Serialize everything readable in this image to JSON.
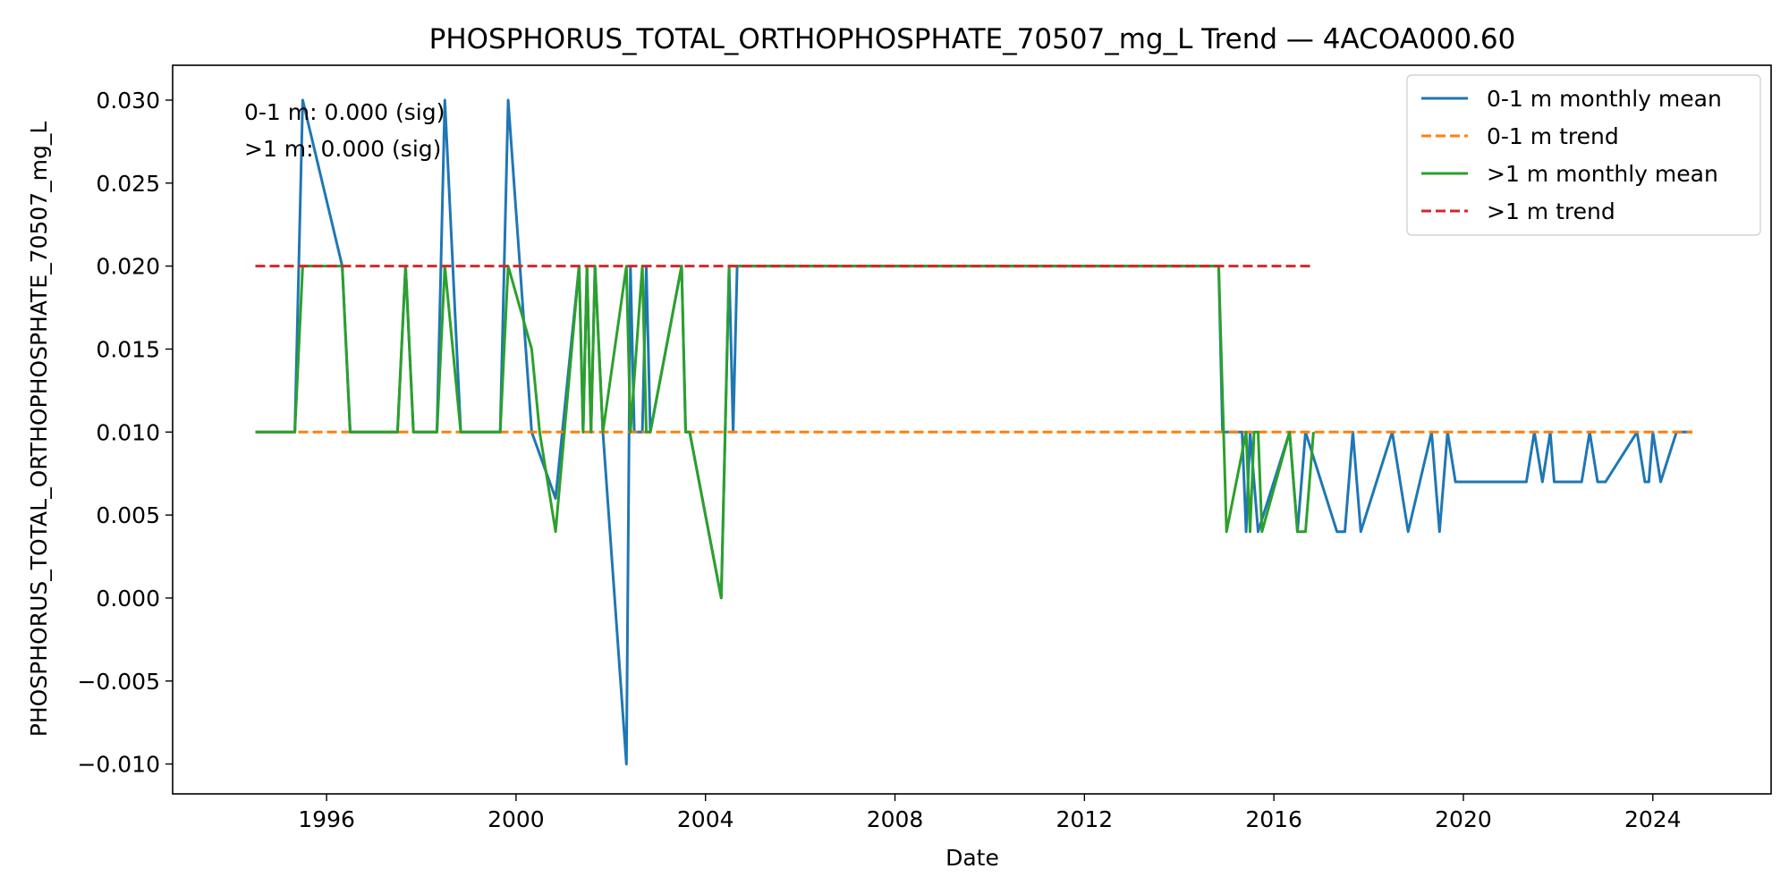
{
  "chart_data": {
    "type": "line",
    "title": "PHOSPHORUS_TOTAL_ORTHOPHOSPHATE_70507_mg_L Trend — 4ACOA000.60",
    "xlabel": "Date",
    "ylabel": "PHOSPHORUS_TOTAL_ORTHOPHOSPHATE_70507_mg_L",
    "x_type": "date",
    "xlim": [
      "1992-10-01",
      "2026-07-01"
    ],
    "ylim": [
      -0.0118,
      0.0321
    ],
    "x_ticks": [
      "1996",
      "2000",
      "2004",
      "2008",
      "2012",
      "2016",
      "2020",
      "2024"
    ],
    "y_ticks": [
      "−0.010",
      "−0.005",
      "0.000",
      "0.005",
      "0.010",
      "0.015",
      "0.020",
      "0.025",
      "0.030"
    ],
    "y_tick_values": [
      -0.01,
      -0.005,
      0.0,
      0.005,
      0.01,
      0.015,
      0.02,
      0.025,
      0.03
    ],
    "grid": false,
    "legend_position": "top-right",
    "annotations": [
      "0-1 m: 0.000 (sig)",
      ">1 m: 0.000 (sig)"
    ],
    "series": [
      {
        "name": "0-1 m monthly mean",
        "color": "#1f77b4",
        "style": "solid",
        "points": [
          [
            "1994-07-01",
            0.01
          ],
          [
            "1995-05-01",
            0.01
          ],
          [
            "1995-07-01",
            0.03
          ],
          [
            "1996-05-01",
            0.02
          ],
          [
            "1996-07-01",
            0.01
          ],
          [
            "1997-07-01",
            0.01
          ],
          [
            "1997-09-01",
            0.02
          ],
          [
            "1997-11-01",
            0.01
          ],
          [
            "1998-05-01",
            0.01
          ],
          [
            "1998-07-01",
            0.03
          ],
          [
            "1998-11-01",
            0.01
          ],
          [
            "1999-09-01",
            0.01
          ],
          [
            "1999-11-01",
            0.03
          ],
          [
            "2000-05-01",
            0.01
          ],
          [
            "2000-11-01",
            0.006
          ],
          [
            "2001-05-01",
            0.02
          ],
          [
            "2001-06-01",
            0.01
          ],
          [
            "2001-07-01",
            0.02
          ],
          [
            "2001-08-01",
            0.01
          ],
          [
            "2001-09-01",
            0.02
          ],
          [
            "2001-11-01",
            0.01
          ],
          [
            "2002-05-01",
            -0.01
          ],
          [
            "2002-06-01",
            0.02
          ],
          [
            "2002-07-01",
            0.01
          ],
          [
            "2002-09-01",
            0.01
          ],
          [
            "2002-10-01",
            0.02
          ],
          [
            "2002-11-01",
            0.01
          ],
          [
            "2003-07-01",
            0.02
          ],
          [
            "2003-08-01",
            0.01
          ],
          [
            "2003-09-01",
            0.01
          ],
          [
            "2004-05-01",
            0.0
          ],
          [
            "2004-07-01",
            0.02
          ],
          [
            "2004-08-01",
            0.01
          ],
          [
            "2004-09-01",
            0.02
          ],
          [
            "2014-11-01",
            0.02
          ],
          [
            "2014-12-01",
            0.01
          ],
          [
            "2015-05-01",
            0.01
          ],
          [
            "2015-06-01",
            0.004
          ],
          [
            "2015-07-01",
            0.01
          ],
          [
            "2015-09-01",
            0.004
          ],
          [
            "2016-05-01",
            0.01
          ],
          [
            "2016-07-01",
            0.004
          ],
          [
            "2016-09-01",
            0.01
          ],
          [
            "2017-05-01",
            0.004
          ],
          [
            "2017-07-01",
            0.004
          ],
          [
            "2017-09-01",
            0.01
          ],
          [
            "2017-11-01",
            0.004
          ],
          [
            "2018-07-01",
            0.01
          ],
          [
            "2018-11-01",
            0.004
          ],
          [
            "2019-05-01",
            0.01
          ],
          [
            "2019-07-01",
            0.004
          ],
          [
            "2019-09-01",
            0.01
          ],
          [
            "2019-11-01",
            0.007
          ],
          [
            "2020-07-01",
            0.007
          ],
          [
            "2021-05-01",
            0.007
          ],
          [
            "2021-07-01",
            0.01
          ],
          [
            "2021-09-01",
            0.007
          ],
          [
            "2021-11-01",
            0.01
          ],
          [
            "2021-12-01",
            0.007
          ],
          [
            "2022-07-01",
            0.007
          ],
          [
            "2022-09-01",
            0.01
          ],
          [
            "2022-11-01",
            0.007
          ],
          [
            "2023-01-01",
            0.007
          ],
          [
            "2023-09-01",
            0.01
          ],
          [
            "2023-11-01",
            0.007
          ],
          [
            "2023-12-01",
            0.007
          ],
          [
            "2024-01-01",
            0.01
          ],
          [
            "2024-03-01",
            0.007
          ],
          [
            "2024-07-01",
            0.01
          ],
          [
            "2024-11-01",
            0.01
          ]
        ]
      },
      {
        "name": "0-1 m trend",
        "color": "#ff7f0e",
        "style": "dashed",
        "points": [
          [
            "1994-07-01",
            0.01
          ],
          [
            "2024-11-01",
            0.01
          ]
        ]
      },
      {
        "name": ">1 m monthly mean",
        "color": "#2ca02c",
        "style": "solid",
        "points": [
          [
            "1994-07-01",
            0.01
          ],
          [
            "1995-05-01",
            0.01
          ],
          [
            "1995-07-01",
            0.02
          ],
          [
            "1996-05-01",
            0.02
          ],
          [
            "1996-07-01",
            0.01
          ],
          [
            "1997-07-01",
            0.01
          ],
          [
            "1997-09-01",
            0.02
          ],
          [
            "1997-11-01",
            0.01
          ],
          [
            "1998-05-01",
            0.01
          ],
          [
            "1998-07-01",
            0.02
          ],
          [
            "1998-11-01",
            0.01
          ],
          [
            "1999-09-01",
            0.01
          ],
          [
            "1999-11-01",
            0.02
          ],
          [
            "2000-05-01",
            0.015
          ],
          [
            "2000-07-01",
            0.01
          ],
          [
            "2000-11-01",
            0.004
          ],
          [
            "2001-05-01",
            0.02
          ],
          [
            "2001-06-01",
            0.01
          ],
          [
            "2001-07-01",
            0.02
          ],
          [
            "2001-08-01",
            0.01
          ],
          [
            "2001-09-01",
            0.02
          ],
          [
            "2001-11-01",
            0.01
          ],
          [
            "2002-05-01",
            0.02
          ],
          [
            "2002-06-01",
            0.01
          ],
          [
            "2002-09-01",
            0.02
          ],
          [
            "2002-10-01",
            0.01
          ],
          [
            "2002-11-01",
            0.01
          ],
          [
            "2003-07-01",
            0.02
          ],
          [
            "2003-08-01",
            0.01
          ],
          [
            "2003-09-01",
            0.01
          ],
          [
            "2004-05-01",
            0.0
          ],
          [
            "2004-07-01",
            0.02
          ],
          [
            "2004-08-01",
            0.02
          ],
          [
            "2004-09-01",
            0.02
          ],
          [
            "2014-11-01",
            0.02
          ],
          [
            "2015-01-01",
            0.004
          ],
          [
            "2015-06-01",
            0.01
          ],
          [
            "2015-07-01",
            0.004
          ],
          [
            "2015-08-01",
            0.01
          ],
          [
            "2015-09-01",
            0.01
          ],
          [
            "2015-10-01",
            0.004
          ],
          [
            "2016-05-01",
            0.01
          ],
          [
            "2016-07-01",
            0.004
          ],
          [
            "2016-09-01",
            0.004
          ],
          [
            "2016-11-01",
            0.01
          ]
        ]
      },
      {
        "name": ">1 m trend",
        "color": "#d62728",
        "style": "dashed",
        "points": [
          [
            "1994-07-01",
            0.02
          ],
          [
            "2016-11-01",
            0.02
          ]
        ]
      }
    ]
  }
}
